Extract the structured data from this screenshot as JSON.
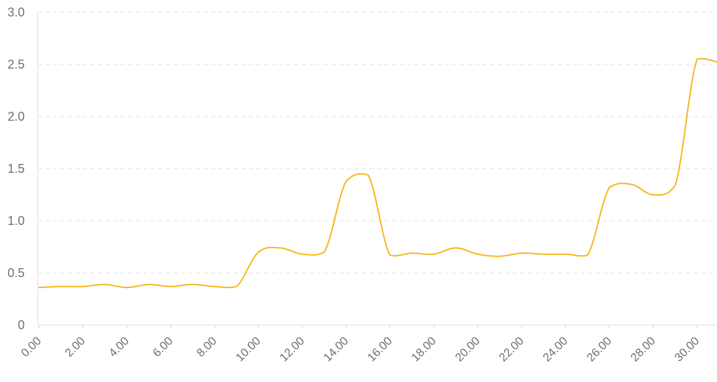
{
  "chart_data": {
    "type": "line",
    "title": "",
    "xlabel": "",
    "ylabel": "",
    "x": [
      0,
      1,
      2,
      3,
      4,
      5,
      6,
      7,
      8,
      9,
      10,
      11,
      12,
      13,
      14,
      15,
      16,
      17,
      18,
      19,
      20,
      21,
      22,
      23,
      24,
      25,
      26,
      27,
      28,
      29,
      30,
      31
    ],
    "series": [
      {
        "values": [
          0.36,
          0.37,
          0.37,
          0.39,
          0.36,
          0.39,
          0.37,
          0.39,
          0.37,
          0.37,
          0.7,
          0.74,
          0.68,
          0.7,
          1.38,
          1.44,
          0.67,
          0.69,
          0.68,
          0.74,
          0.68,
          0.66,
          0.69,
          0.68,
          0.68,
          0.67,
          1.32,
          1.35,
          1.25,
          1.34,
          2.55,
          2.52
        ],
        "color": "#f5b71b"
      }
    ],
    "xticks": [
      "0.00",
      "2.00",
      "4.00",
      "6.00",
      "8.00",
      "10.00",
      "12.00",
      "14.00",
      "16.00",
      "18.00",
      "20.00",
      "22.00",
      "24.00",
      "26.00",
      "28.00",
      "30.00"
    ],
    "xtick_values": [
      0,
      2,
      4,
      6,
      8,
      10,
      12,
      14,
      16,
      18,
      20,
      22,
      24,
      26,
      28,
      30
    ],
    "yticks": [
      "0",
      "0.5",
      "1.0",
      "1.5",
      "2.0",
      "2.5",
      "3.0"
    ],
    "ytick_values": [
      0,
      0.5,
      1.0,
      1.5,
      2.0,
      2.5,
      3.0
    ],
    "xlim": [
      0,
      31
    ],
    "ylim": [
      0,
      3.0
    ],
    "grid": true,
    "legend": "none"
  }
}
